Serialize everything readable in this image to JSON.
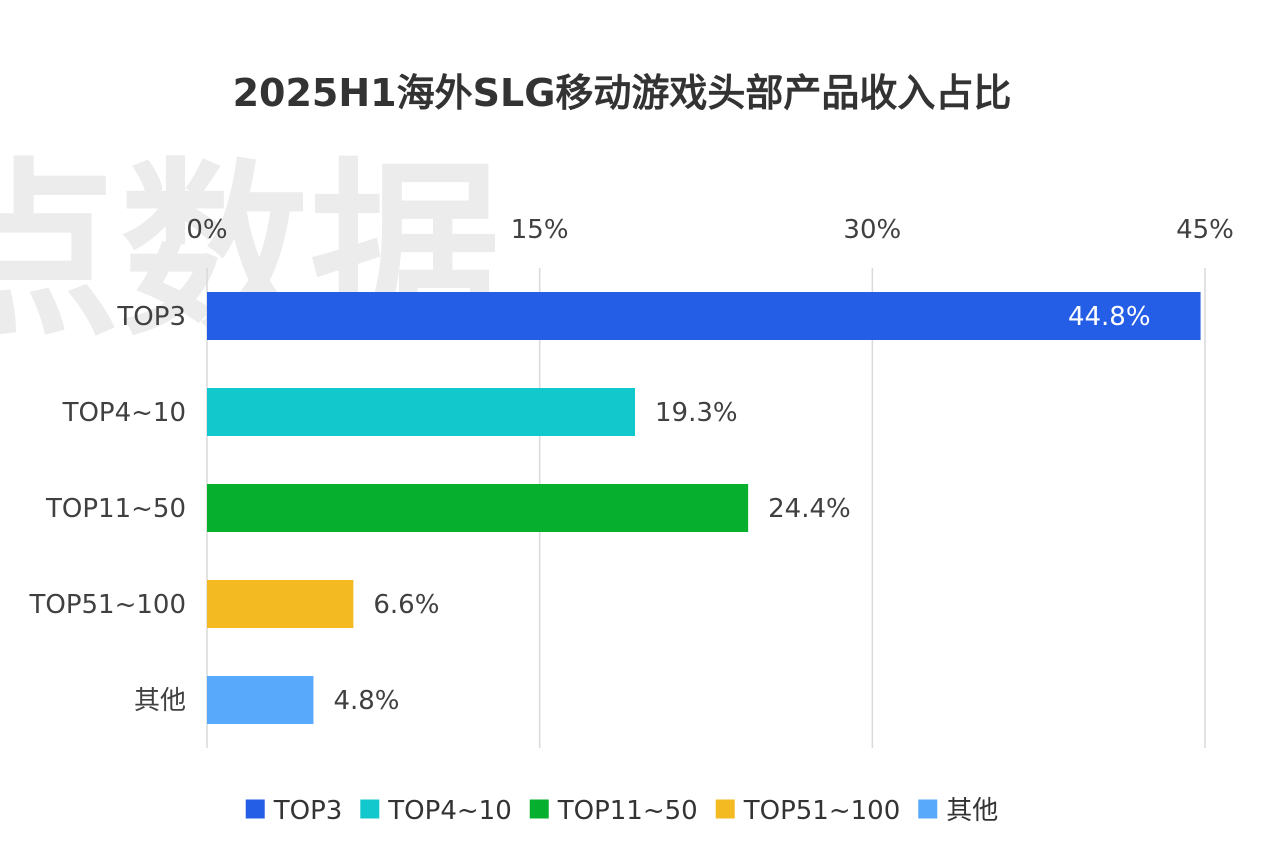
{
  "watermark": "点数据",
  "colors": {
    "TOP3": "#245ee6",
    "TOP4~10": "#13c8cc",
    "TOP11~50": "#06b02e",
    "TOP51~100": "#f4ba21",
    "其他": "#58a8fb"
  },
  "chart_data": {
    "type": "bar",
    "orientation": "horizontal",
    "title": "2025H1海外SLG移动游戏头部产品收入占比",
    "categories": [
      "TOP3",
      "TOP4~10",
      "TOP11~50",
      "TOP51~100",
      "其他"
    ],
    "values": [
      44.8,
      19.3,
      24.4,
      6.6,
      4.8
    ],
    "data_labels": [
      "44.8%",
      "19.3%",
      "24.4%",
      "6.6%",
      "4.8%"
    ],
    "xaxis": {
      "position": "top",
      "ticks": [
        0,
        15,
        30,
        45
      ],
      "tick_labels": [
        "0%",
        "15%",
        "30%",
        "45%"
      ],
      "xlim": [
        0,
        45
      ]
    },
    "grid": true,
    "xlabel": "",
    "ylabel": "",
    "legend": {
      "position": "bottom",
      "entries": [
        "TOP3",
        "TOP4~10",
        "TOP11~50",
        "TOP51~100",
        "其他"
      ]
    }
  }
}
